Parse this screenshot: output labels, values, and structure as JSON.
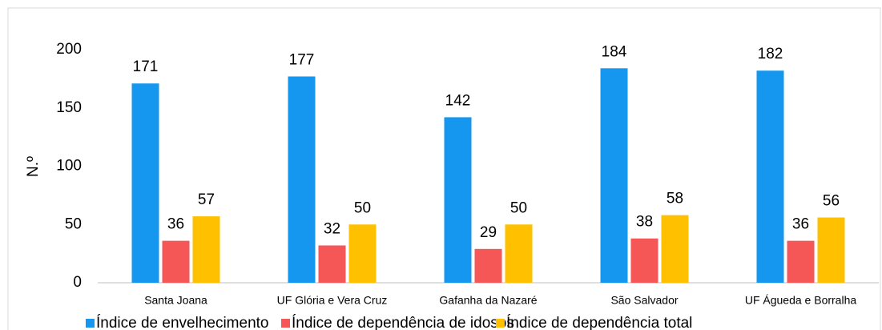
{
  "chart_data": {
    "type": "bar",
    "y_label": "N.º",
    "categories": [
      "Santa Joana",
      "UF Glória e Vera Cruz",
      "Gafanha da Nazaré",
      "São Salvador",
      "UF Águeda e Borralha"
    ],
    "series": [
      {
        "name": "Índice de envelhecimento",
        "color": "#1597f0",
        "values": [
          171,
          177,
          142,
          184,
          182
        ]
      },
      {
        "name": "Índice de dependência de idosos",
        "color": "#f55656",
        "values": [
          36,
          32,
          29,
          38,
          36
        ]
      },
      {
        "name": "Índice de dependência total",
        "color": "#ffc000",
        "values": [
          57,
          50,
          50,
          58,
          56
        ]
      }
    ],
    "ylim": [
      0,
      200
    ],
    "yticks": [
      0,
      50,
      100,
      150,
      200
    ],
    "grid": false,
    "legend": "bottom"
  }
}
